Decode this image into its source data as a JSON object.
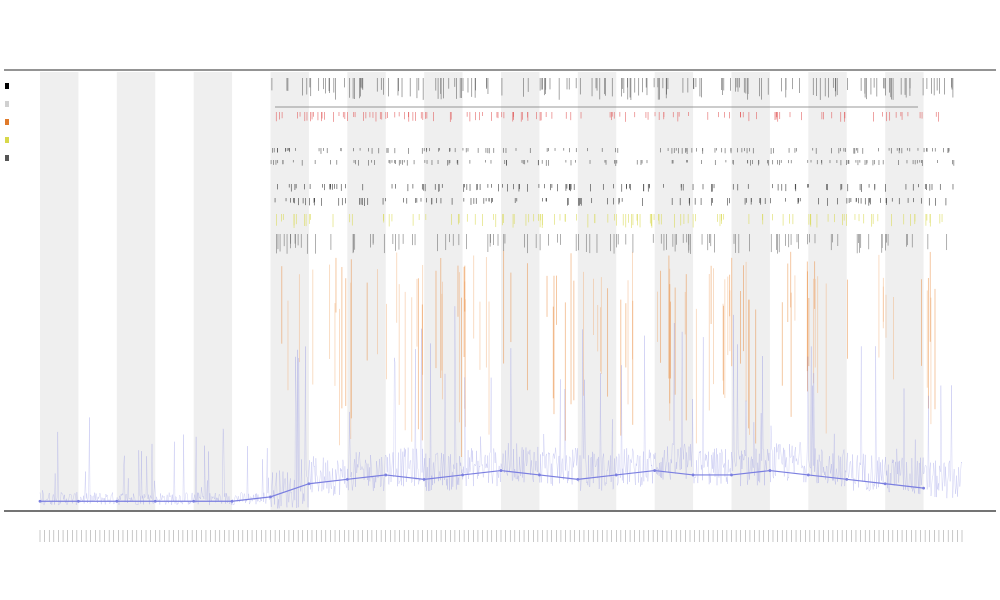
{
  "chart_data": {
    "type": "line",
    "title": "",
    "subtitles": [
      "",
      ""
    ],
    "xlabel": "",
    "ylabel": "",
    "legend_position": "top-left",
    "legend": [
      {
        "label": "",
        "color": "#000000"
      },
      {
        "label": "",
        "color": "#d0d0d0"
      },
      {
        "label": "",
        "color": "#e07a2a"
      },
      {
        "label": "",
        "color": "#d8d84a"
      },
      {
        "label": "",
        "color": "#555555"
      }
    ],
    "annotation_row_labels": [
      "",
      ""
    ],
    "grid": false,
    "shaded_bands": true,
    "x": [
      0,
      1,
      2,
      3,
      4,
      5,
      6,
      7,
      8,
      9,
      10,
      11,
      12,
      13,
      14,
      15,
      16,
      17,
      18,
      19,
      20,
      21,
      22,
      23
    ],
    "series": [
      {
        "name": "",
        "color": "#7b7fe0",
        "values": [
          2,
          2,
          2,
          2,
          2,
          2,
          3,
          6,
          7,
          8,
          7,
          8,
          9,
          8,
          7,
          8,
          9,
          8,
          8,
          9,
          8,
          7,
          6,
          5
        ]
      }
    ],
    "ylim": [
      0,
      100
    ],
    "xlim": [
      0,
      24
    ]
  }
}
